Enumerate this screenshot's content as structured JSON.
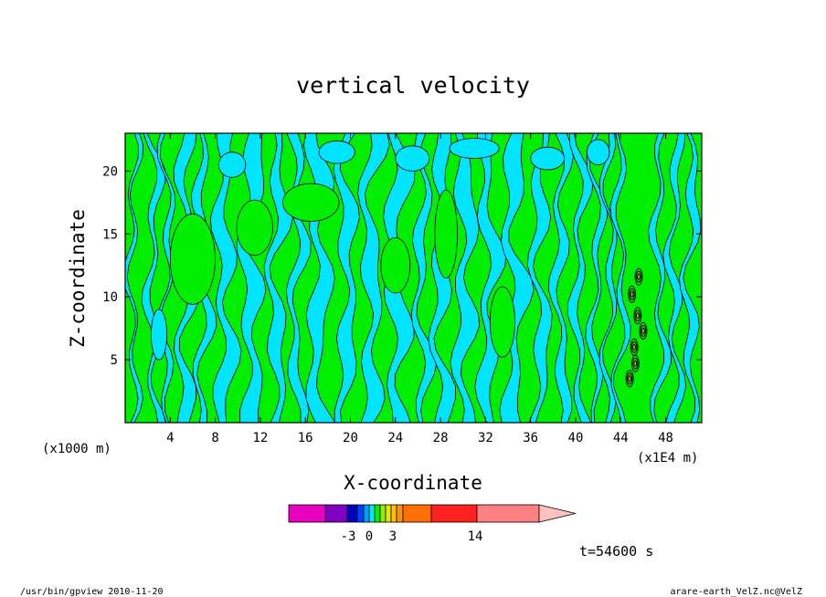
{
  "footer": {
    "left": "/usr/bin/gpview  2010-11-20",
    "right": "arare-earth_VelZ.nc@VelZ"
  },
  "chart_data": {
    "type": "heatmap",
    "title": "vertical velocity",
    "xlabel": "X-coordinate",
    "ylabel": "Z-coordinate",
    "x_unit": "(x1E4 m)",
    "y_unit": "(x1000 m)",
    "xlim": [
      0,
      51.2
    ],
    "ylim": [
      0,
      23
    ],
    "x_ticks": [
      4,
      8,
      12,
      16,
      20,
      24,
      28,
      32,
      36,
      40,
      44,
      48
    ],
    "x_tick_labels": [
      "4",
      "8",
      "12",
      "16",
      "20",
      "24",
      "28",
      "32",
      "36",
      "40",
      "44",
      "48"
    ],
    "y_ticks": [
      5,
      10,
      15,
      20
    ],
    "y_tick_labels": [
      "5",
      "10",
      "15",
      "20"
    ],
    "time_label": "t=54600 s",
    "colors": {
      "negative": "#00e5ff",
      "positive": "#00ee00",
      "contour": "#000000",
      "strong": "#ffa500"
    },
    "colorbar": {
      "tick_labels": [
        "-3",
        "0",
        "3",
        "14"
      ],
      "tick_values": [
        -3,
        0,
        3,
        14
      ],
      "colors": [
        "#e800c0",
        "#8000c0",
        "#0000c0",
        "#0040ff",
        "#00a0ff",
        "#00e5ff",
        "#00ee00",
        "#90ee00",
        "#e8e800",
        "#ffc000",
        "#ff9000",
        "#ff7000",
        "#ff2020",
        "#ff8080",
        "#ffc0c0"
      ]
    },
    "bands": [
      {
        "x": 0.5,
        "w": 0.4,
        "c": "#00e5ff"
      },
      {
        "x": 2.2,
        "w": 0.7,
        "c": "#00e5ff"
      },
      {
        "x": 3.5,
        "w": 0.5,
        "c": "#00e5ff"
      },
      {
        "x": 5.0,
        "w": 1.1,
        "c": "#00e5ff"
      },
      {
        "x": 6.6,
        "w": 0.8,
        "c": "#00e5ff"
      },
      {
        "x": 8.3,
        "w": 1.4,
        "c": "#00e5ff"
      },
      {
        "x": 10.6,
        "w": 1.5,
        "c": "#00e5ff"
      },
      {
        "x": 13.0,
        "w": 1.2,
        "c": "#00e5ff"
      },
      {
        "x": 14.9,
        "w": 0.9,
        "c": "#00e5ff"
      },
      {
        "x": 16.6,
        "w": 1.6,
        "c": "#00e5ff"
      },
      {
        "x": 19.2,
        "w": 1.3,
        "c": "#00e5ff"
      },
      {
        "x": 21.3,
        "w": 1.4,
        "c": "#00e5ff"
      },
      {
        "x": 23.5,
        "w": 1.6,
        "c": "#00e5ff"
      },
      {
        "x": 26.0,
        "w": 0.9,
        "c": "#00e5ff"
      },
      {
        "x": 27.6,
        "w": 1.2,
        "c": "#00e5ff"
      },
      {
        "x": 29.6,
        "w": 1.5,
        "c": "#00e5ff"
      },
      {
        "x": 31.8,
        "w": 1.3,
        "c": "#00e5ff"
      },
      {
        "x": 34.0,
        "w": 1.5,
        "c": "#00e5ff"
      },
      {
        "x": 36.4,
        "w": 1.1,
        "c": "#00e5ff"
      },
      {
        "x": 38.3,
        "w": 0.9,
        "c": "#00e5ff"
      },
      {
        "x": 40.0,
        "w": 0.8,
        "c": "#00e5ff"
      },
      {
        "x": 41.6,
        "w": 0.6,
        "c": "#00e5ff"
      },
      {
        "x": 42.8,
        "w": 0.5,
        "c": "#00e5ff"
      },
      {
        "x": 43.8,
        "w": 0.5,
        "c": "#00e5ff"
      },
      {
        "x": 47.2,
        "w": 0.6,
        "c": "#00e5ff"
      },
      {
        "x": 48.5,
        "w": 0.7,
        "c": "#00e5ff"
      },
      {
        "x": 49.9,
        "w": 0.8,
        "c": "#00e5ff"
      }
    ],
    "patches": [
      {
        "x": 6.0,
        "y": 13.0,
        "rx": 2.0,
        "ry": 3.6,
        "c": "#00ee00"
      },
      {
        "x": 11.5,
        "y": 15.5,
        "rx": 1.6,
        "ry": 2.2,
        "c": "#00ee00"
      },
      {
        "x": 16.5,
        "y": 17.5,
        "rx": 2.5,
        "ry": 1.5,
        "c": "#00ee00"
      },
      {
        "x": 24.0,
        "y": 12.5,
        "rx": 1.3,
        "ry": 2.2,
        "c": "#00ee00"
      },
      {
        "x": 28.5,
        "y": 15.0,
        "rx": 1.0,
        "ry": 3.5,
        "c": "#00ee00"
      },
      {
        "x": 33.5,
        "y": 8.0,
        "rx": 1.1,
        "ry": 2.8,
        "c": "#00ee00"
      },
      {
        "x": 3.0,
        "y": 7.0,
        "rx": 0.7,
        "ry": 2.0,
        "c": "#00e5ff"
      },
      {
        "x": 9.5,
        "y": 20.5,
        "rx": 1.2,
        "ry": 1.0,
        "c": "#00e5ff"
      },
      {
        "x": 18.8,
        "y": 21.5,
        "rx": 1.6,
        "ry": 0.9,
        "c": "#00e5ff"
      },
      {
        "x": 25.5,
        "y": 21.0,
        "rx": 1.5,
        "ry": 1.0,
        "c": "#00e5ff"
      },
      {
        "x": 31.0,
        "y": 21.8,
        "rx": 2.2,
        "ry": 0.8,
        "c": "#00e5ff"
      },
      {
        "x": 37.5,
        "y": 21.0,
        "rx": 1.5,
        "ry": 0.9,
        "c": "#00e5ff"
      },
      {
        "x": 42.0,
        "y": 21.5,
        "rx": 1.0,
        "ry": 1.0,
        "c": "#00e5ff"
      }
    ],
    "strong_zone": [
      {
        "x": 44.8,
        "y": 3.5
      },
      {
        "x": 45.2,
        "y": 6.0
      },
      {
        "x": 45.5,
        "y": 8.5
      },
      {
        "x": 45.0,
        "y": 10.2
      },
      {
        "x": 45.6,
        "y": 11.6
      },
      {
        "x": 45.3,
        "y": 4.7
      },
      {
        "x": 46.0,
        "y": 7.3
      }
    ]
  }
}
